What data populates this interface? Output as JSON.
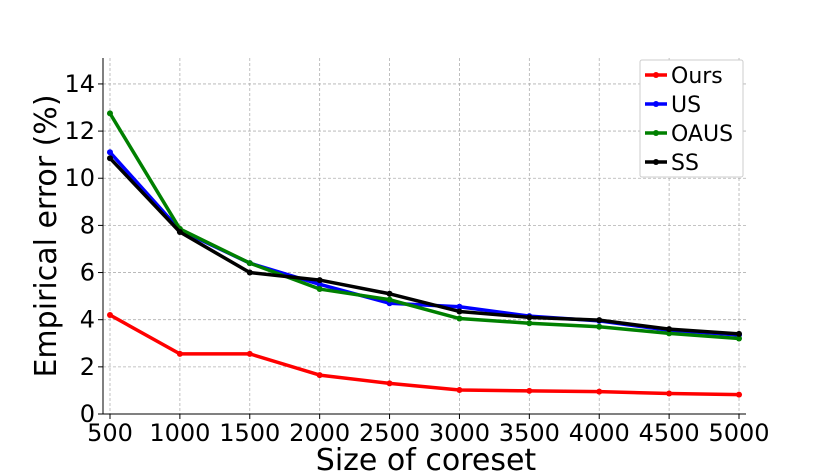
{
  "chart_data": {
    "type": "line",
    "title": "",
    "xlabel": "Size of coreset",
    "ylabel": "Empirical error (%)",
    "x": [
      500,
      1000,
      1500,
      2000,
      2500,
      3000,
      3500,
      4000,
      4500,
      5000
    ],
    "xlim": [
      450,
      5050
    ],
    "ylim": [
      0,
      15.1
    ],
    "x_ticks": [
      500,
      1000,
      1500,
      2000,
      2500,
      3000,
      3500,
      4000,
      4500,
      5000
    ],
    "y_ticks": [
      0,
      2,
      4,
      6,
      8,
      10,
      12,
      14
    ],
    "grid": true,
    "legend_position": "top-right",
    "series": [
      {
        "name": "Ours",
        "color": "#ff0000",
        "values": [
          4.2,
          2.55,
          2.55,
          1.65,
          1.3,
          1.02,
          0.98,
          0.95,
          0.87,
          0.82
        ]
      },
      {
        "name": "US",
        "color": "#0000ff",
        "values": [
          11.1,
          7.8,
          6.4,
          5.5,
          4.7,
          4.55,
          4.15,
          3.95,
          3.55,
          3.35
        ]
      },
      {
        "name": "OAUS",
        "color": "#008000",
        "values": [
          12.75,
          7.85,
          6.4,
          5.3,
          4.85,
          4.05,
          3.85,
          3.7,
          3.42,
          3.2
        ]
      },
      {
        "name": "SS",
        "color": "#000000",
        "values": [
          10.85,
          7.72,
          6.0,
          5.68,
          5.1,
          4.35,
          4.1,
          3.98,
          3.6,
          3.4
        ]
      }
    ]
  }
}
